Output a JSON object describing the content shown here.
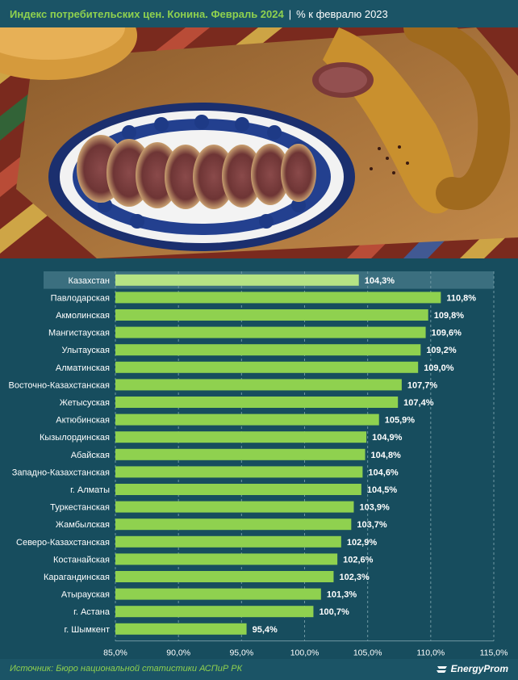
{
  "header": {
    "title": "Индекс потребительских цен. Конина. Февраль 2024",
    "separator": "|",
    "subtitle": "% к февралю 2023"
  },
  "photo": {
    "description_icon": "sausage-platter-image"
  },
  "footer": {
    "source": "Источник: Бюро национальной статистики АСПиР РК",
    "brand": "EnergyProm",
    "brand_icon": "energyprom-logo-icon"
  },
  "colors": {
    "bar": "#8fd14f",
    "bar_highlight": "#b5e384",
    "highlight_row": "#3b6f7f",
    "grid": "#6f98a3",
    "text": "#ffffff",
    "title_accent": "#8fd14f"
  },
  "chart_data": {
    "type": "bar",
    "orientation": "horizontal",
    "categories": [
      "Казахстан",
      "Павлодарская",
      "Акмолинская",
      "Мангистауская",
      "Улытауская",
      "Алматинская",
      "Восточно-Казахстанская",
      "Жетысуская",
      "Актюбинская",
      "Кызылординская",
      "Абайская",
      "Западно-Казахстанская",
      "г. Алматы",
      "Туркестанская",
      "Жамбылская",
      "Северо-Казахстанская",
      "Костанайская",
      "Карагандинская",
      "Атырауская",
      "г. Астана",
      "г. Шымкент"
    ],
    "values": [
      104.3,
      110.8,
      109.8,
      109.6,
      109.2,
      109.0,
      107.7,
      107.4,
      105.9,
      104.9,
      104.8,
      104.6,
      104.5,
      103.9,
      103.7,
      102.9,
      102.6,
      102.3,
      101.3,
      100.7,
      95.4
    ],
    "value_labels": [
      "104,3%",
      "110,8%",
      "109,8%",
      "109,6%",
      "109,2%",
      "109,0%",
      "107,7%",
      "107,4%",
      "105,9%",
      "104,9%",
      "104,8%",
      "104,6%",
      "104,5%",
      "103,9%",
      "103,7%",
      "102,9%",
      "102,6%",
      "102,3%",
      "101,3%",
      "100,7%",
      "95,4%"
    ],
    "highlight_index": 0,
    "xlim": [
      85,
      115
    ],
    "x_ticks": [
      85,
      90,
      95,
      100,
      105,
      110,
      115
    ],
    "x_tick_labels": [
      "85,0%",
      "90,0%",
      "95,0%",
      "100,0%",
      "105,0%",
      "110,0%",
      "115,0%"
    ],
    "grid": "vertical-dashed",
    "legend": "none"
  }
}
